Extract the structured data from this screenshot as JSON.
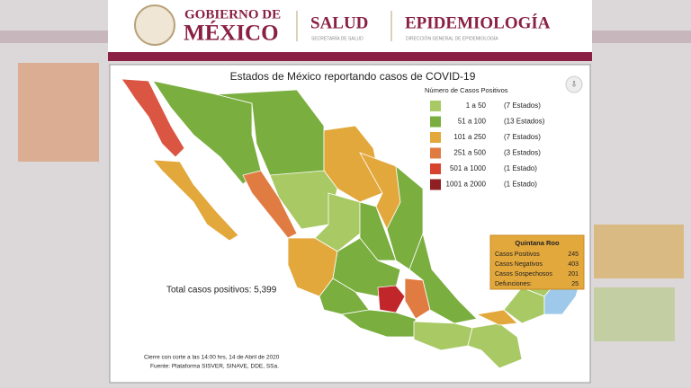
{
  "header": {
    "gobierno": "GOBIERNO DE",
    "mexico": "MÉXICO",
    "salud": "SALUD",
    "salud_sub": "SECRETARÍA DE SALUD",
    "epi": "EPIDEMIOLOGÍA",
    "epi_sub": "DIRECCIÓN GENERAL DE EPIDEMIOLOGÍA"
  },
  "map": {
    "title": "Estados de México reportando casos de COVID-19",
    "legend_title": "Número de Casos Positivos",
    "legend": [
      {
        "range": "1 a 50",
        "count": "(7 Estados)",
        "color": "#a9c965"
      },
      {
        "range": "51 a 100",
        "count": "(13 Estados)",
        "color": "#7aae3f"
      },
      {
        "range": "101 a 250",
        "count": "(7 Estados)",
        "color": "#e3a83c"
      },
      {
        "range": "251 a 500",
        "count": "(3 Estados)",
        "color": "#e07b42"
      },
      {
        "range": "501 a 1000",
        "count": "(1 Estado)",
        "color": "#d8432f"
      },
      {
        "range": "1001 a 2000",
        "count": "(1 Estado)",
        "color": "#8f1f22"
      }
    ],
    "total": "Total casos positivos: 5,399",
    "tooltip": {
      "state": "Quintana Roo",
      "rows": [
        {
          "label": "Casos Positivos",
          "value": 245
        },
        {
          "label": "Casos Negativos",
          "value": 403
        },
        {
          "label": "Casos Sospechosos",
          "value": 201
        },
        {
          "label": "Defunciones:",
          "value": 25
        }
      ]
    },
    "footnote": [
      "Cierre con corte a las 14:00 hrs, 14 de Abril de 2020",
      "Fuente: Plataforma SISVER, SINAVE, DDE, SSa."
    ]
  }
}
